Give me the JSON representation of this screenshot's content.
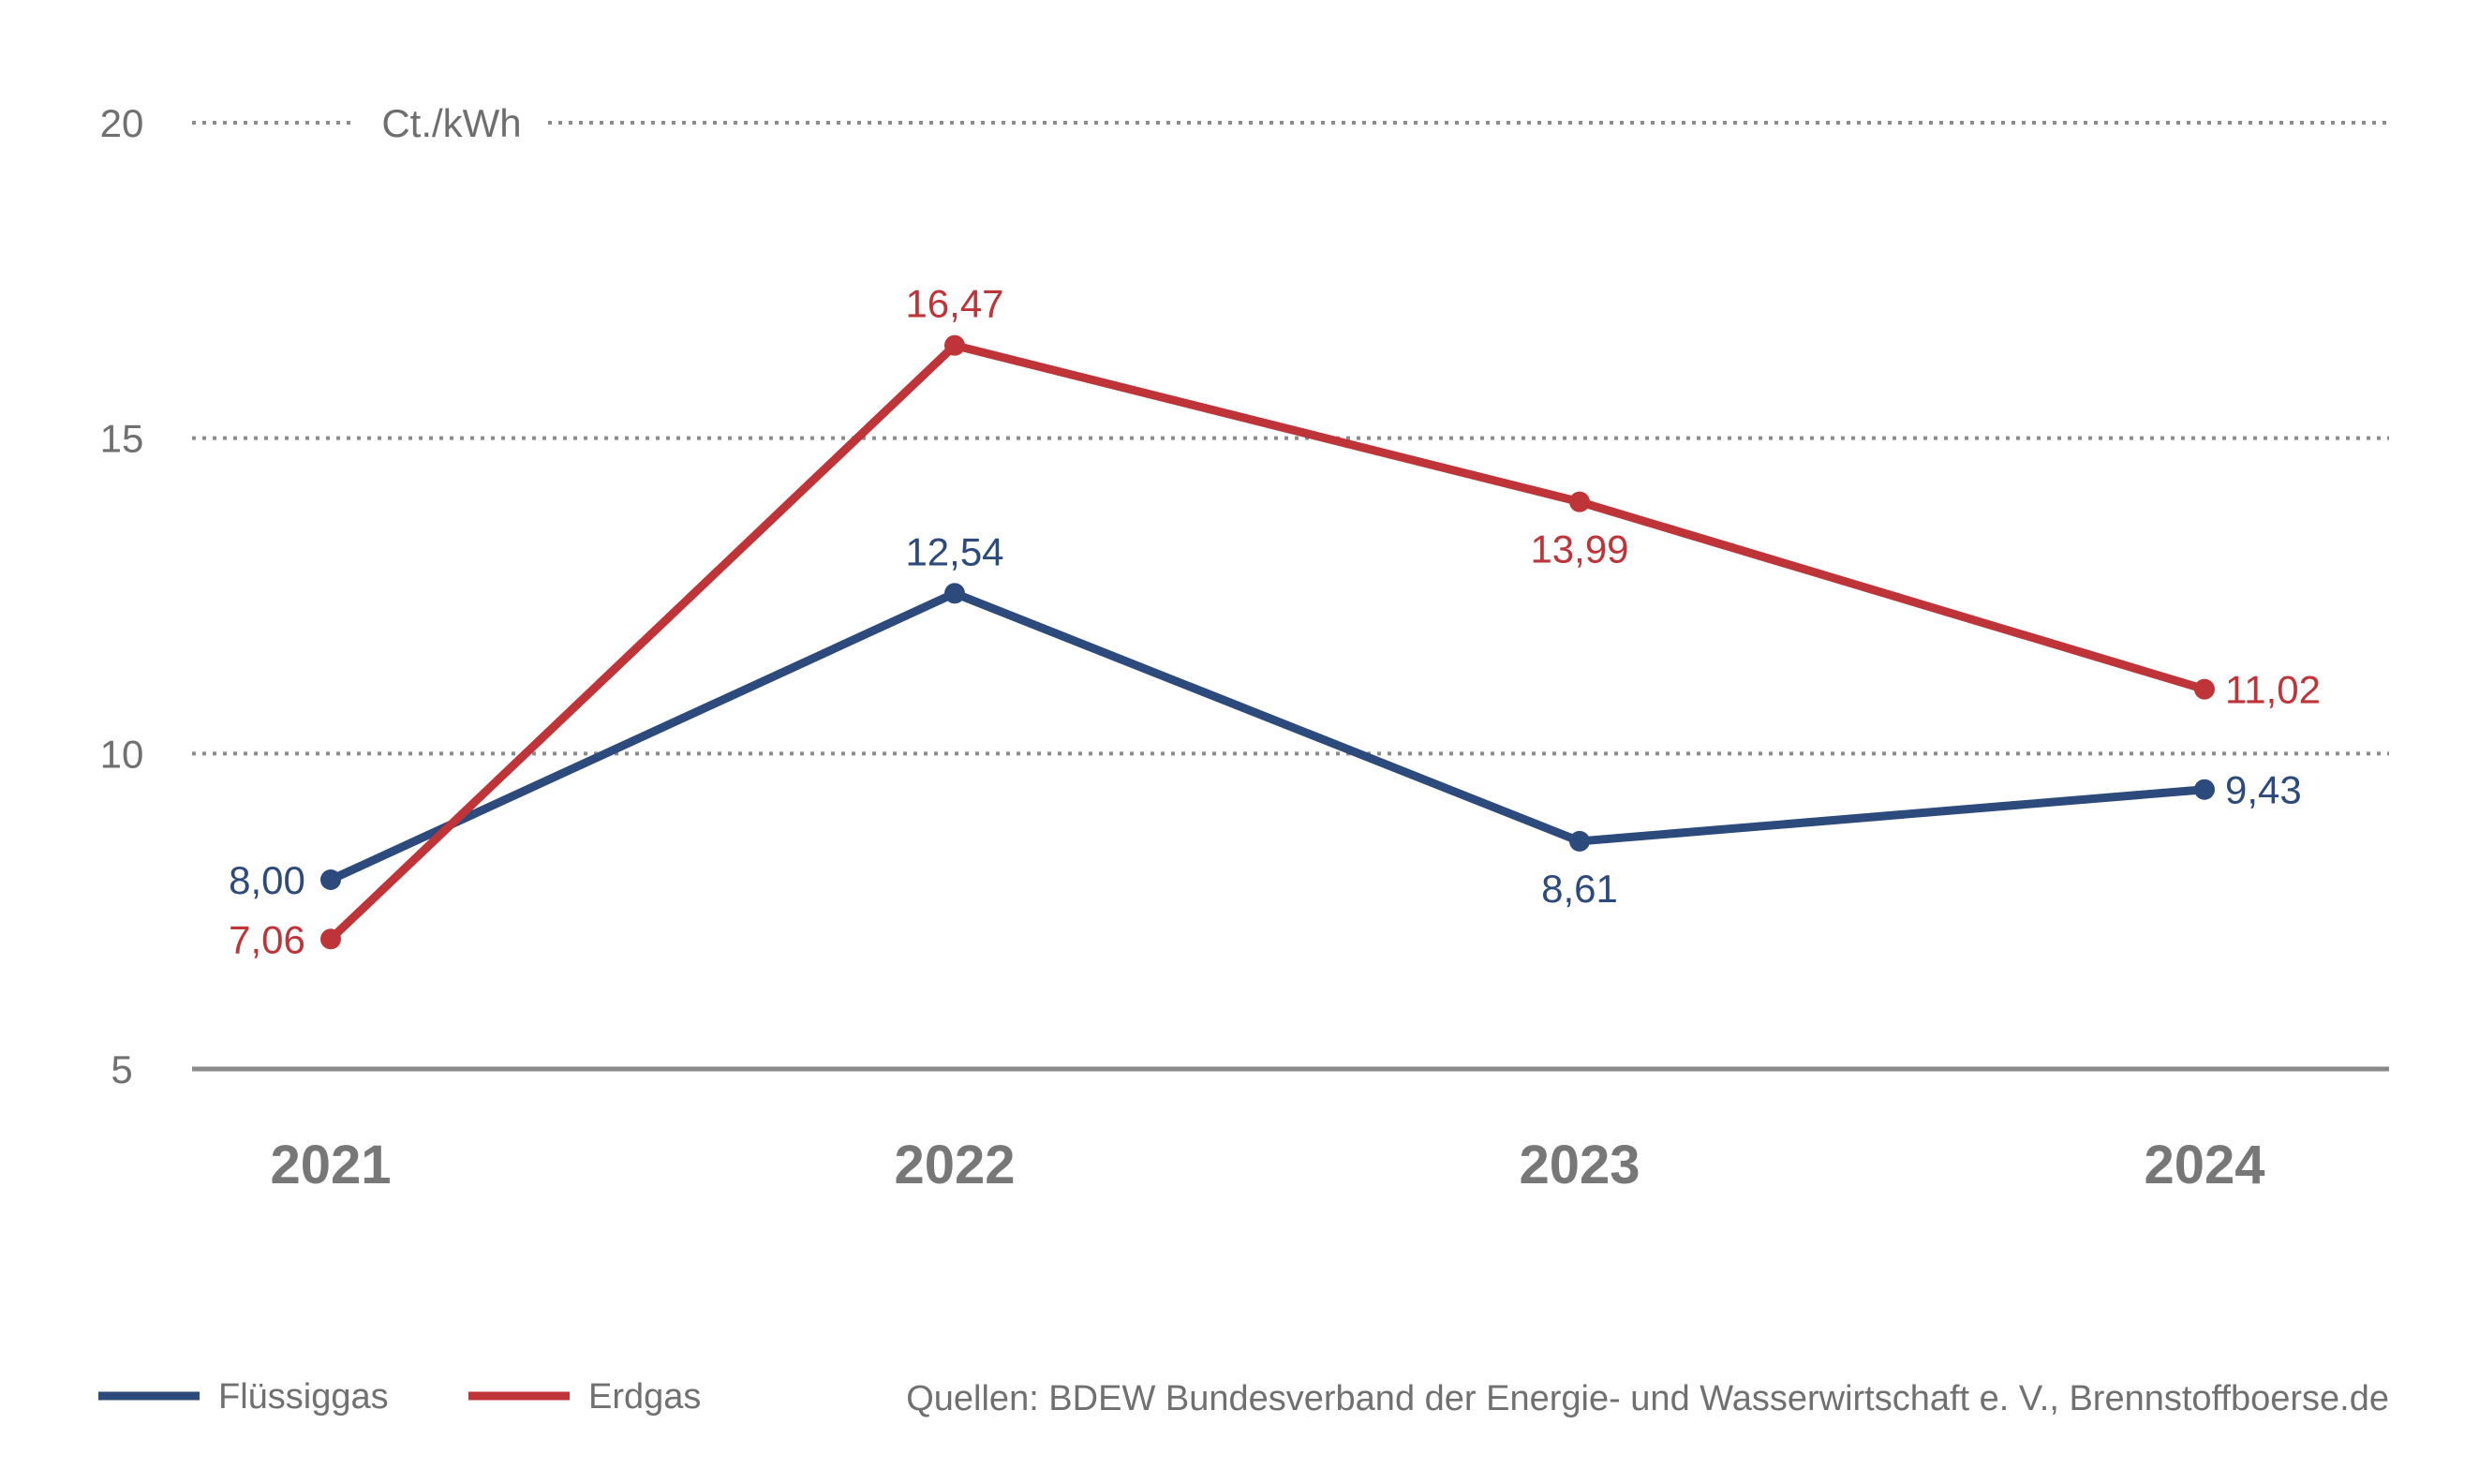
{
  "chart_data": {
    "type": "line",
    "unit_label": "Ct./kWh",
    "categories": [
      "2021",
      "2022",
      "2023",
      "2024"
    ],
    "y_ticks": [
      5,
      10,
      15,
      20
    ],
    "ylim": [
      5,
      20
    ],
    "grid": "dotted-horizontal",
    "series": [
      {
        "name": "Flüssiggas",
        "color": "#2c4a7c",
        "values": [
          8.0,
          12.54,
          8.61,
          9.43
        ],
        "labels": [
          "8,00",
          "12,54",
          "8,61",
          "9,43"
        ]
      },
      {
        "name": "Erdgas",
        "color": "#bf3438",
        "values": [
          7.06,
          16.47,
          13.99,
          11.02
        ],
        "labels": [
          "7,06",
          "16,47",
          "13,99",
          "11,02"
        ]
      }
    ],
    "legend_position": "bottom-left",
    "source": "Quellen: BDEW Bundesverband der Energie- und Wasserwirtschaft e. V., Brennstoffboerse.de"
  }
}
